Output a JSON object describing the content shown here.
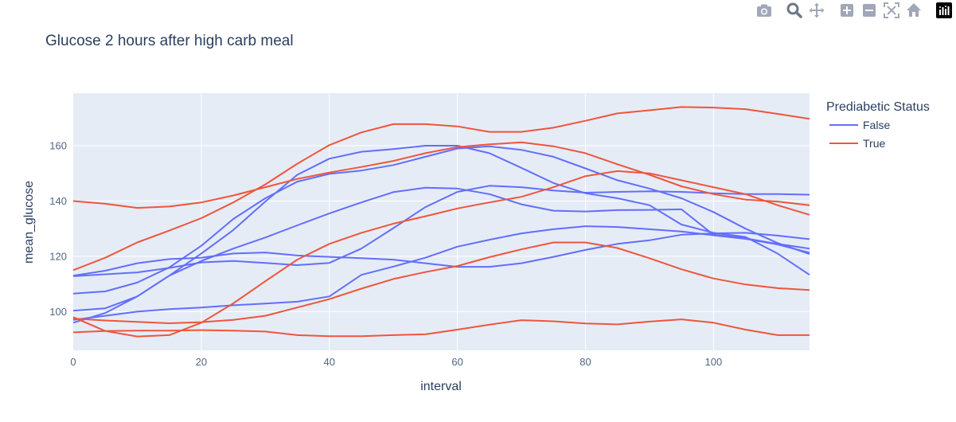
{
  "colors": {
    "false": "#636efa",
    "true": "#ef553b",
    "plot_bg": "#e5ecf6",
    "grid": "#ffffff",
    "text": "#2a3f5f",
    "tick": "#506784",
    "icon": "#a0a7b8",
    "icon_dark": "#6d7789"
  },
  "modebar": {
    "icons": [
      "camera-icon",
      "zoom-icon",
      "pan-icon",
      "zoom-in-icon",
      "zoom-out-icon",
      "autoscale-icon",
      "reset-axes-icon",
      "plotly-logo-icon"
    ]
  },
  "chart_data": {
    "type": "line",
    "title": "Glucose 2 hours after high carb meal",
    "xlabel": "interval",
    "ylabel": "mean_glucose",
    "xlim": [
      0,
      115
    ],
    "ylim": [
      86,
      179
    ],
    "x_ticks": [
      0,
      20,
      40,
      60,
      80,
      100
    ],
    "y_ticks": [
      100,
      120,
      140,
      160
    ],
    "grid": true,
    "legend": {
      "title": "Prediabetic Status",
      "position": "right",
      "entries": [
        "False",
        "True"
      ]
    },
    "x": [
      0,
      5,
      10,
      15,
      20,
      25,
      30,
      35,
      40,
      45,
      50,
      55,
      60,
      65,
      70,
      75,
      80,
      85,
      90,
      95,
      100,
      105,
      110,
      115
    ],
    "series": [
      {
        "group": "False",
        "values": [
          113,
          114.8,
          117.5,
          119,
          119.5,
          121,
          121.4,
          120.3,
          119.8,
          119.3,
          118.8,
          117.5,
          116.2,
          116.2,
          117.5,
          119.8,
          122.3,
          124.5,
          125.8,
          127.8,
          128.3,
          128.5,
          127.5,
          126.2
        ]
      },
      {
        "group": "False",
        "values": [
          106.5,
          107.3,
          110.5,
          116,
          123.8,
          133.5,
          141,
          147,
          149.8,
          151,
          153,
          156,
          159,
          159.8,
          158.5,
          156,
          151.8,
          147.5,
          144.5,
          141,
          136,
          130,
          124.8,
          120.8
        ]
      },
      {
        "group": "False",
        "values": [
          96,
          99.5,
          105.5,
          113,
          121,
          129.5,
          139.8,
          149.5,
          155.3,
          157.8,
          158.8,
          160,
          160,
          157.3,
          152,
          146.5,
          142.8,
          141,
          138.5,
          131.5,
          128.5,
          127,
          121,
          113.3
        ]
      },
      {
        "group": "False",
        "values": [
          112.8,
          113.5,
          114.2,
          115.8,
          117.8,
          118.3,
          117.6,
          116.8,
          117.6,
          122.8,
          130.2,
          137.8,
          143.3,
          145.5,
          145,
          143.8,
          143,
          143.3,
          143.5,
          143.3,
          142.8,
          142.5,
          142.5,
          142.3
        ]
      },
      {
        "group": "False",
        "values": [
          100.3,
          101.2,
          105.5,
          113,
          118.3,
          122.8,
          126.8,
          131.2,
          135.5,
          139.5,
          143.2,
          144.8,
          144.5,
          142.5,
          138.8,
          136.5,
          136.2,
          136.7,
          136.8,
          137,
          127.8,
          126.5,
          124.5,
          122.8
        ]
      },
      {
        "group": "False",
        "values": [
          97,
          98.5,
          100,
          100.9,
          101.5,
          102.3,
          102.9,
          103.6,
          105.5,
          113.3,
          116.3,
          119.5,
          123.5,
          126,
          128.3,
          129.8,
          130.9,
          130.6,
          129.8,
          129,
          127.6,
          126.3,
          124.3,
          121.3
        ]
      },
      {
        "group": "True",
        "values": [
          140,
          139,
          137.5,
          138,
          139.5,
          142,
          145,
          148,
          150.3,
          152.3,
          154.5,
          157.3,
          159.5,
          160.5,
          161.2,
          159.8,
          157.3,
          153.3,
          149.5,
          145.3,
          142.5,
          140.5,
          139.8,
          138.5
        ]
      },
      {
        "group": "True",
        "values": [
          115,
          119.5,
          125,
          129.3,
          133.8,
          139.5,
          146,
          153.5,
          160.2,
          164.8,
          167.8,
          167.8,
          167,
          165,
          165,
          166.5,
          169,
          171.7,
          172.8,
          174,
          173.8,
          173.2,
          171.5,
          169.7
        ]
      },
      {
        "group": "True",
        "values": [
          97.5,
          96.8,
          96.3,
          95.8,
          96.2,
          97,
          98.5,
          101.5,
          104.5,
          108.3,
          111.8,
          114.3,
          116.5,
          119.7,
          122.5,
          125,
          125,
          123,
          119.3,
          115.3,
          112,
          109.8,
          108.5,
          107.8
        ]
      },
      {
        "group": "True",
        "values": [
          98,
          93,
          91,
          91.5,
          96,
          103,
          111,
          118.8,
          124.5,
          128.5,
          131.8,
          134.5,
          137.3,
          139.5,
          141.5,
          145,
          149,
          150.8,
          150,
          147.5,
          145,
          142.5,
          138.5,
          135
        ]
      },
      {
        "group": "True",
        "values": [
          92.5,
          93,
          93.1,
          93.1,
          93.3,
          93.1,
          92.8,
          91.5,
          91.1,
          91.1,
          91.5,
          91.8,
          93.5,
          95.3,
          96.9,
          96.5,
          95.7,
          95.4,
          96.4,
          97.2,
          96,
          93.5,
          91.5,
          91.5
        ]
      }
    ]
  }
}
